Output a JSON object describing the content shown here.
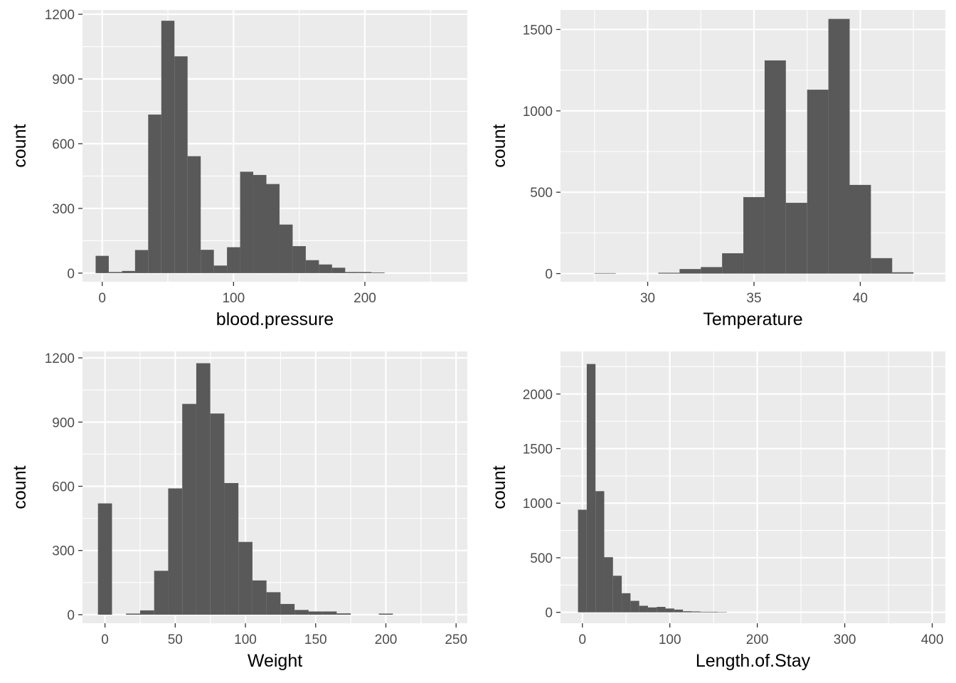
{
  "chart_data": [
    {
      "type": "bar",
      "xlabel": "blood.pressure",
      "ylabel": "count",
      "xlim": [
        -15,
        278
      ],
      "ylim": [
        -40,
        1220
      ],
      "x_ticks": [
        0,
        100,
        200
      ],
      "y_ticks": [
        0,
        300,
        600,
        900,
        1200
      ],
      "bin_width": 10,
      "bins": [
        {
          "x": 0,
          "count": 80
        },
        {
          "x": 10,
          "count": 5
        },
        {
          "x": 20,
          "count": 10
        },
        {
          "x": 30,
          "count": 107
        },
        {
          "x": 40,
          "count": 735
        },
        {
          "x": 50,
          "count": 1170
        },
        {
          "x": 60,
          "count": 1005
        },
        {
          "x": 70,
          "count": 542
        },
        {
          "x": 80,
          "count": 108
        },
        {
          "x": 90,
          "count": 35
        },
        {
          "x": 100,
          "count": 120
        },
        {
          "x": 110,
          "count": 470
        },
        {
          "x": 120,
          "count": 455
        },
        {
          "x": 130,
          "count": 413
        },
        {
          "x": 140,
          "count": 225
        },
        {
          "x": 150,
          "count": 125
        },
        {
          "x": 160,
          "count": 60
        },
        {
          "x": 170,
          "count": 40
        },
        {
          "x": 180,
          "count": 25
        },
        {
          "x": 190,
          "count": 5
        },
        {
          "x": 200,
          "count": 5
        },
        {
          "x": 210,
          "count": 3
        }
      ],
      "grid": true,
      "bar_color": "#595959",
      "panel_color": "#ebebeb"
    },
    {
      "type": "bar",
      "xlabel": "Temperature",
      "ylabel": "count",
      "xlim": [
        25.9,
        44.0
      ],
      "ylim": [
        -50,
        1620
      ],
      "x_ticks": [
        30,
        35,
        40
      ],
      "y_ticks": [
        0,
        500,
        1000,
        1500
      ],
      "bin_width": 1,
      "bins": [
        {
          "x": 28,
          "count": 3
        },
        {
          "x": 31,
          "count": 5
        },
        {
          "x": 32,
          "count": 28
        },
        {
          "x": 33,
          "count": 40
        },
        {
          "x": 34,
          "count": 125
        },
        {
          "x": 35,
          "count": 470
        },
        {
          "x": 36,
          "count": 1310
        },
        {
          "x": 37,
          "count": 435
        },
        {
          "x": 38,
          "count": 1130
        },
        {
          "x": 39,
          "count": 1565
        },
        {
          "x": 40,
          "count": 545
        },
        {
          "x": 41,
          "count": 95
        },
        {
          "x": 42,
          "count": 8
        }
      ],
      "grid": true,
      "bar_color": "#595959",
      "panel_color": "#ebebeb"
    },
    {
      "type": "bar",
      "xlabel": "Weight",
      "ylabel": "count",
      "xlim": [
        -16,
        258
      ],
      "ylim": [
        -40,
        1230
      ],
      "x_ticks": [
        0,
        50,
        100,
        150,
        200,
        250
      ],
      "y_ticks": [
        0,
        300,
        600,
        900,
        1200
      ],
      "bin_width": 10,
      "bins": [
        {
          "x": 0,
          "count": 520
        },
        {
          "x": 20,
          "count": 5
        },
        {
          "x": 30,
          "count": 20
        },
        {
          "x": 40,
          "count": 205
        },
        {
          "x": 50,
          "count": 590
        },
        {
          "x": 60,
          "count": 985
        },
        {
          "x": 70,
          "count": 1175
        },
        {
          "x": 80,
          "count": 940
        },
        {
          "x": 90,
          "count": 615
        },
        {
          "x": 100,
          "count": 340
        },
        {
          "x": 110,
          "count": 160
        },
        {
          "x": 120,
          "count": 105
        },
        {
          "x": 130,
          "count": 50
        },
        {
          "x": 140,
          "count": 22
        },
        {
          "x": 150,
          "count": 15
        },
        {
          "x": 160,
          "count": 15
        },
        {
          "x": 170,
          "count": 6
        },
        {
          "x": 200,
          "count": 5
        }
      ],
      "grid": true,
      "bar_color": "#595959",
      "panel_color": "#ebebeb"
    },
    {
      "type": "bar",
      "xlabel": "Length.of.Stay",
      "ylabel": "count",
      "xlim": [
        -25,
        415
      ],
      "ylim": [
        -100,
        2390
      ],
      "x_ticks": [
        0,
        100,
        200,
        300,
        400
      ],
      "y_ticks": [
        0,
        500,
        1000,
        1500,
        2000
      ],
      "bin_width": 10,
      "bins": [
        {
          "x": 0,
          "count": 940
        },
        {
          "x": 10,
          "count": 2275
        },
        {
          "x": 20,
          "count": 1110
        },
        {
          "x": 30,
          "count": 505
        },
        {
          "x": 40,
          "count": 335
        },
        {
          "x": 50,
          "count": 175
        },
        {
          "x": 60,
          "count": 105
        },
        {
          "x": 70,
          "count": 60
        },
        {
          "x": 80,
          "count": 45
        },
        {
          "x": 90,
          "count": 50
        },
        {
          "x": 100,
          "count": 35
        },
        {
          "x": 110,
          "count": 25
        },
        {
          "x": 120,
          "count": 10
        },
        {
          "x": 130,
          "count": 8
        },
        {
          "x": 140,
          "count": 5
        },
        {
          "x": 150,
          "count": 5
        },
        {
          "x": 160,
          "count": 3
        }
      ],
      "grid": true,
      "bar_color": "#595959",
      "panel_color": "#ebebeb"
    }
  ]
}
